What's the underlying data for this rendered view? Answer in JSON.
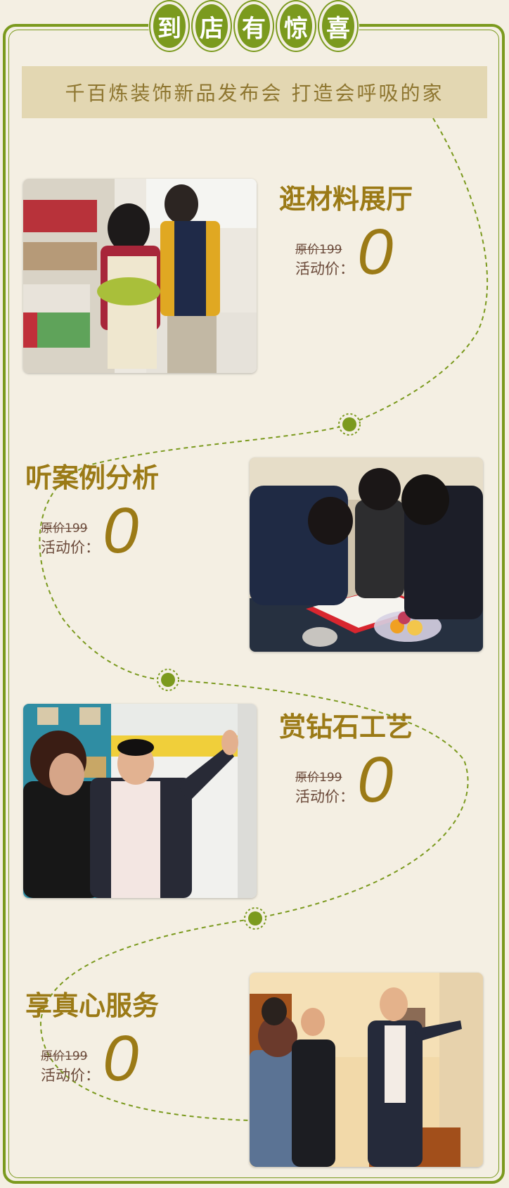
{
  "header": {
    "title_chars": [
      "到",
      "店",
      "有",
      "惊",
      "喜"
    ],
    "subtitle": "千百炼装饰新品发布会  打造会呼吸的家"
  },
  "sections": [
    {
      "title": "逛材料展厅",
      "original_price": "原价199",
      "activity_label": "活动价：",
      "activity_price": "0"
    },
    {
      "title": "听案例分析",
      "original_price": "原价199",
      "activity_label": "活动价：",
      "activity_price": "0"
    },
    {
      "title": "赏钻石工艺",
      "original_price": "原价199",
      "activity_label": "活动价：",
      "activity_price": "0"
    },
    {
      "title": "享真心服务",
      "original_price": "原价199",
      "activity_label": "活动价：",
      "activity_price": "0"
    }
  ],
  "colors": {
    "accent_green": "#7b9a1e",
    "title_gold": "#9b7a16",
    "background": "#f4efe3",
    "banner": "#e3d7b2"
  }
}
